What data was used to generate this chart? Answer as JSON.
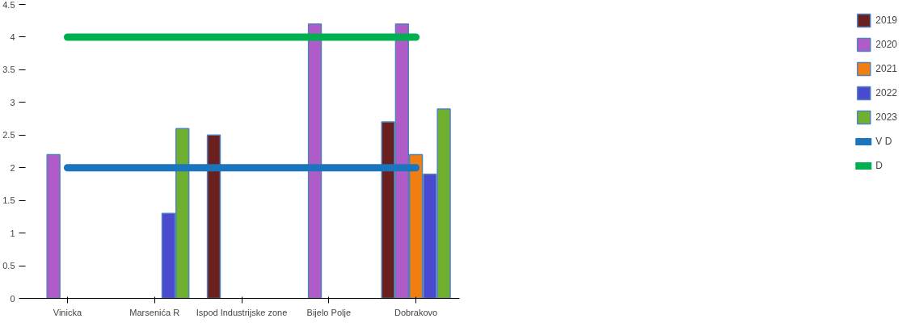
{
  "chart_data": {
    "type": "bar",
    "categories": [
      "Vinicka",
      "Marsenića R",
      "Ispod Industrijske zone",
      "Bijelo Polje",
      "Dobrakovo"
    ],
    "series": [
      {
        "name": "2019",
        "color": "#6b2020",
        "values": [
          null,
          null,
          2.5,
          null,
          2.7
        ]
      },
      {
        "name": "2020",
        "color": "#b05cc8",
        "values": [
          2.2,
          null,
          null,
          4.2,
          4.2
        ]
      },
      {
        "name": "2021",
        "color": "#f07f10",
        "values": [
          null,
          null,
          null,
          null,
          2.2
        ]
      },
      {
        "name": "2022",
        "color": "#4a4ad0",
        "values": [
          null,
          1.3,
          null,
          null,
          1.9
        ]
      },
      {
        "name": "2023",
        "color": "#70b030",
        "values": [
          null,
          2.6,
          null,
          null,
          2.9
        ]
      },
      {
        "name": "V D",
        "type": "line",
        "color": "#1b75bc",
        "values": [
          2,
          2,
          2,
          2,
          2
        ]
      },
      {
        "name": "D",
        "type": "line",
        "color": "#00b050",
        "values": [
          4,
          4,
          4,
          4,
          4
        ]
      }
    ],
    "ylim": [
      0,
      4.5
    ],
    "yticks": [
      0,
      0.5,
      1,
      1.5,
      2,
      2.5,
      3,
      3.5,
      4,
      4.5
    ],
    "grid": false,
    "legend": "right"
  }
}
